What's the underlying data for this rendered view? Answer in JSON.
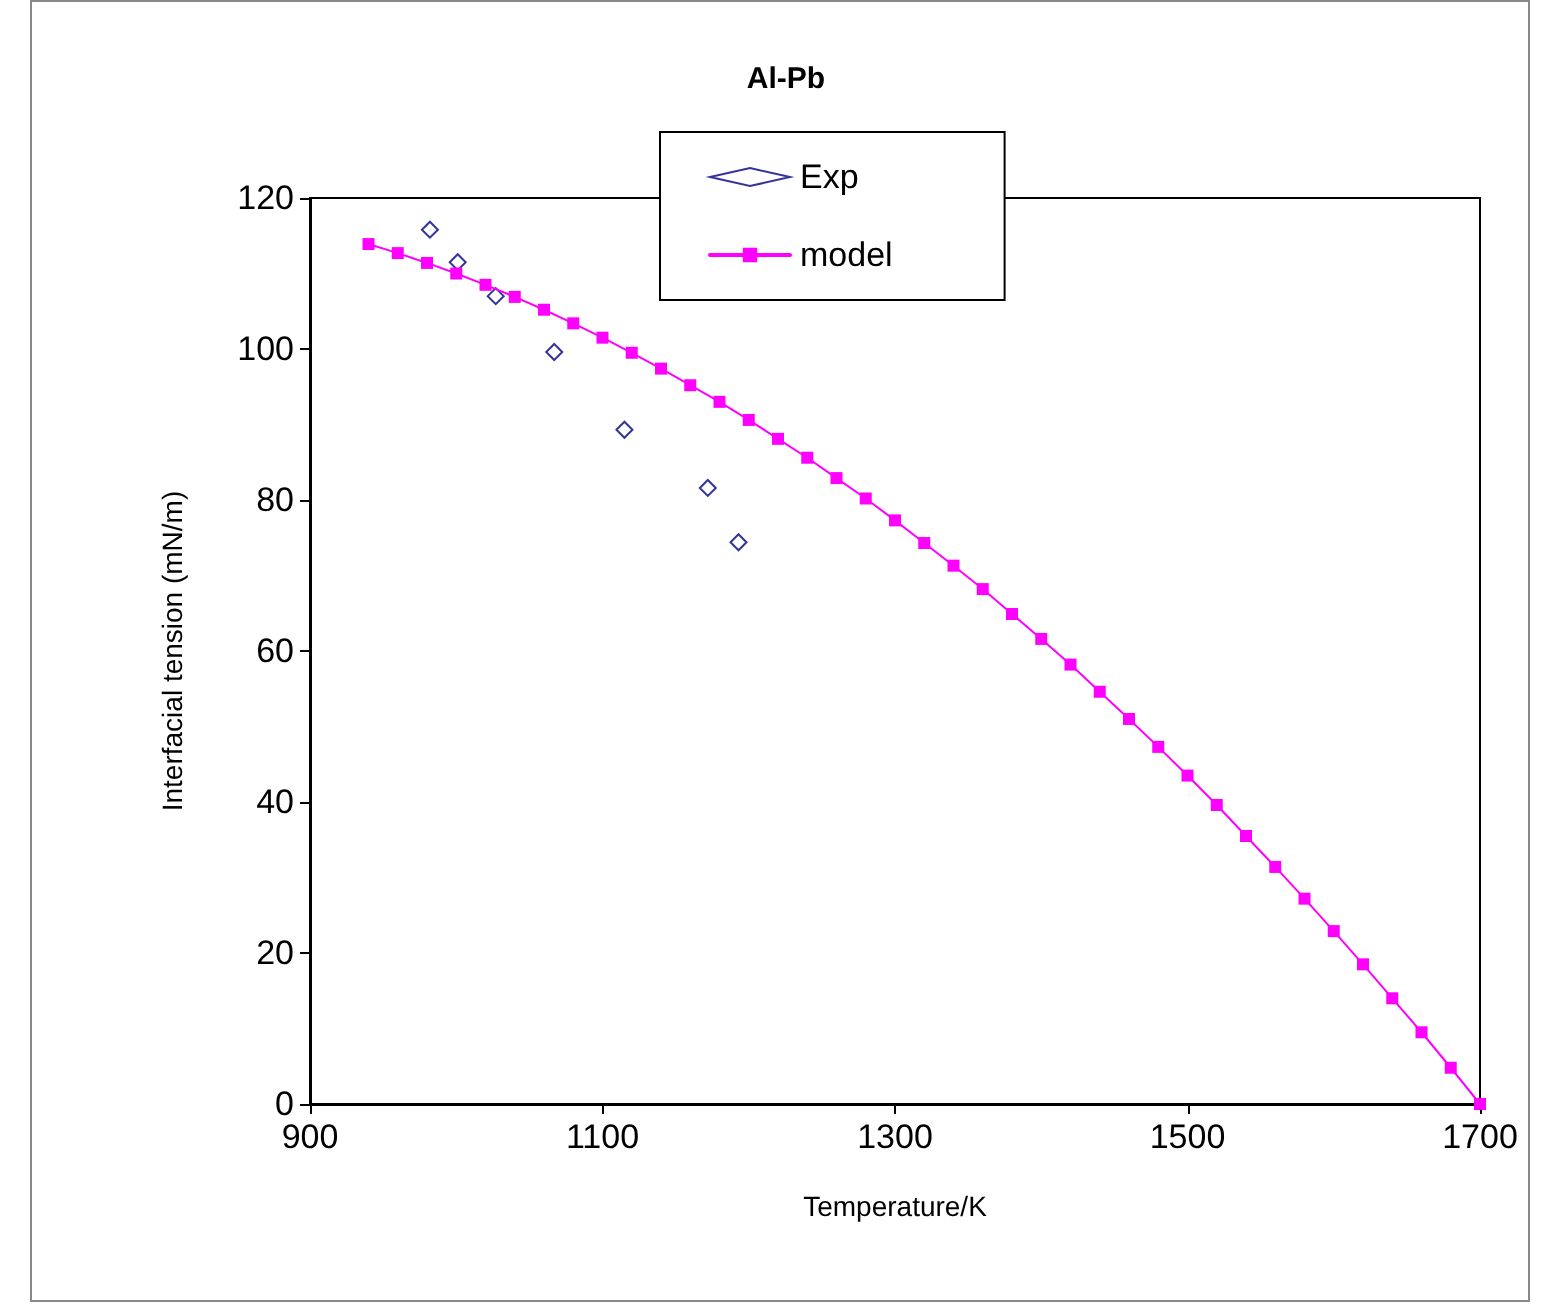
{
  "chart_data": {
    "type": "scatter",
    "title": "Al-Pb",
    "xlabel": "Temperature/K",
    "ylabel": "Interfacial tension (mN/m)",
    "xlim": [
      900,
      1700
    ],
    "xticks": [
      900,
      1100,
      1300,
      1500,
      1700
    ],
    "ylim": [
      0,
      120
    ],
    "yticks": [
      0,
      20,
      40,
      60,
      80,
      100,
      120
    ],
    "grid": false,
    "legend": "top",
    "series": [
      {
        "name": "Exp",
        "marker": "diamond",
        "color": "#000080",
        "x": [
          982,
          1001,
          1027,
          1067,
          1115,
          1172,
          1193
        ],
        "values": [
          115.8,
          111.5,
          107.0,
          99.6,
          89.3,
          81.6,
          74.4
        ]
      },
      {
        "name": "model",
        "type": "line",
        "marker": "square",
        "line_style": "solid",
        "color": "#ff00ff",
        "x": [
          940,
          960,
          980,
          1000,
          1020,
          1040,
          1060,
          1080,
          1100,
          1120,
          1140,
          1160,
          1180,
          1200,
          1220,
          1240,
          1260,
          1280,
          1300,
          1320,
          1340,
          1360,
          1380,
          1400,
          1420,
          1440,
          1460,
          1480,
          1500,
          1520,
          1540,
          1560,
          1580,
          1600,
          1620,
          1640,
          1660,
          1680,
          1700
        ],
        "values": [
          113.9,
          112.7,
          111.4,
          110.0,
          108.5,
          106.9,
          105.2,
          103.4,
          101.5,
          99.5,
          97.4,
          95.2,
          93.0,
          90.6,
          88.1,
          85.6,
          82.9,
          80.2,
          77.3,
          74.3,
          71.3,
          68.2,
          64.9,
          61.6,
          58.2,
          54.6,
          51.0,
          47.3,
          43.5,
          39.6,
          35.5,
          31.4,
          27.2,
          22.9,
          18.5,
          14.0,
          9.5,
          4.8,
          0
        ]
      }
    ]
  }
}
